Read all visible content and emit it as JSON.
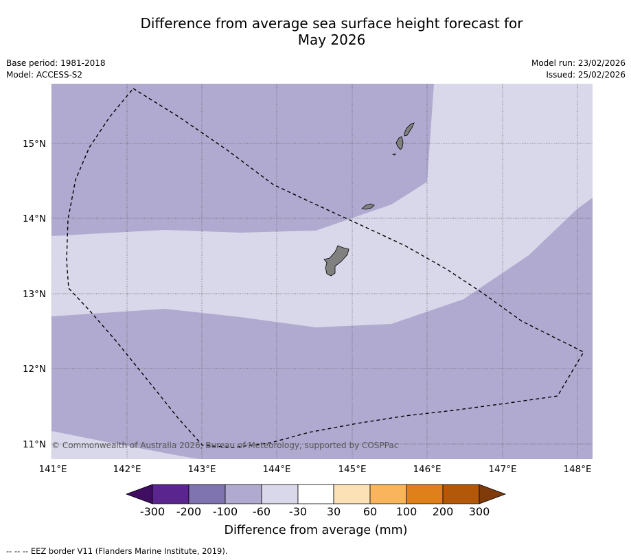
{
  "title_line1": "Difference from average sea surface height forecast for",
  "title_line2": "May 2026",
  "base_period": "Base period: 1981-2018",
  "model": "Model: ACCESS-S2",
  "model_run": "Model run: 23/02/2026",
  "issued": "Issued: 25/02/2026",
  "copyright": "© Commonwealth of Australia 2026, Bureau of Meteorology, supported by COSPPac",
  "footnote": "--  --  -- EEZ border V11 (Flanders Marine Institute, 2019).",
  "x_ticks": [
    "141°E",
    "142°E",
    "143°E",
    "144°E",
    "145°E",
    "146°E",
    "147°E",
    "148°E"
  ],
  "y_ticks": [
    "15°N",
    "14°N",
    "13°N",
    "12°N",
    "11°N"
  ],
  "colorbar": {
    "label": "Difference from average (mm)",
    "tick_labels": [
      "-300",
      "-200",
      "-100",
      "-60",
      "-30",
      "30",
      "60",
      "100",
      "200",
      "300"
    ],
    "colors": [
      "#3f0d62",
      "#5b2590",
      "#8074b0",
      "#b0aad0",
      "#d9d8ea",
      "#ffffff",
      "#fde1b6",
      "#f9b45c",
      "#e0801a",
      "#b35808",
      "#7f3b0a"
    ]
  },
  "map_colors": {
    "light": "#d9d8ea",
    "medium": "#b0aad0",
    "land": "#808080"
  }
}
